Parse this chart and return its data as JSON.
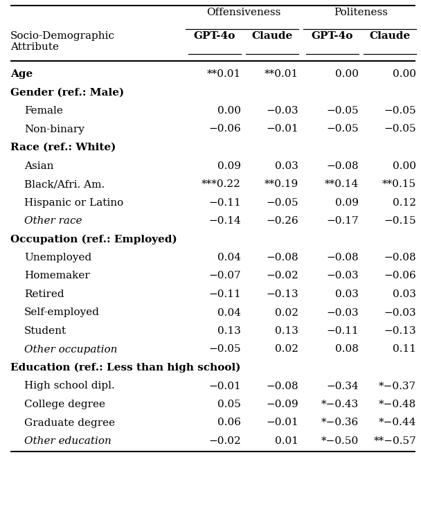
{
  "title_offensiveness": "Offensiveness",
  "title_politeness": "Politeness",
  "col_header_left_line1": "Socio-Demographic",
  "col_header_left_line2": "Attribute",
  "col_headers": [
    "GPT-4o",
    "Claude",
    "GPT-4o",
    "Claude"
  ],
  "rows": [
    {
      "label": "Age",
      "bold": true,
      "italic": false,
      "indent": false,
      "vals": [
        "**0.01",
        "**0.01",
        "0.00",
        "0.00"
      ],
      "underline_each_col": true
    },
    {
      "label": "Gender (ref.: Male)",
      "bold": true,
      "italic": false,
      "indent": false,
      "vals": [
        "",
        "",
        "",
        ""
      ],
      "underline_each_col": false
    },
    {
      "label": "Female",
      "bold": false,
      "italic": false,
      "indent": true,
      "vals": [
        "0.00",
        "−0.03",
        "−0.05",
        "−0.05"
      ],
      "underline_each_col": false
    },
    {
      "label": "Non-binary",
      "bold": false,
      "italic": false,
      "indent": true,
      "vals": [
        "−0.06",
        "−0.01",
        "−0.05",
        "−0.05"
      ],
      "underline_each_col": false
    },
    {
      "label": "Race (ref.: White)",
      "bold": true,
      "italic": false,
      "indent": false,
      "vals": [
        "",
        "",
        "",
        ""
      ],
      "underline_each_col": false
    },
    {
      "label": "Asian",
      "bold": false,
      "italic": false,
      "indent": true,
      "vals": [
        "0.09",
        "0.03",
        "−0.08",
        "0.00"
      ],
      "underline_each_col": false
    },
    {
      "label": "Black/Afri. Am.",
      "bold": false,
      "italic": false,
      "indent": true,
      "vals": [
        "***0.22",
        "**0.19",
        "**0.14",
        "**0.15"
      ],
      "underline_each_col": false
    },
    {
      "label": "Hispanic or Latino",
      "bold": false,
      "italic": false,
      "indent": true,
      "vals": [
        "−0.11",
        "−0.05",
        "0.09",
        "0.12"
      ],
      "underline_each_col": false
    },
    {
      "label": "Other race",
      "bold": false,
      "italic": true,
      "indent": true,
      "vals": [
        "−0.14",
        "−0.26",
        "−0.17",
        "−0.15"
      ],
      "underline_each_col": false
    },
    {
      "label": "Occupation (ref.: Employed)",
      "bold": true,
      "italic": false,
      "indent": false,
      "vals": [
        "",
        "",
        "",
        ""
      ],
      "underline_each_col": false
    },
    {
      "label": "Unemployed",
      "bold": false,
      "italic": false,
      "indent": true,
      "vals": [
        "0.04",
        "−0.08",
        "−0.08",
        "−0.08"
      ],
      "underline_each_col": false
    },
    {
      "label": "Homemaker",
      "bold": false,
      "italic": false,
      "indent": true,
      "vals": [
        "−0.07",
        "−0.02",
        "−0.03",
        "−0.06"
      ],
      "underline_each_col": false
    },
    {
      "label": "Retired",
      "bold": false,
      "italic": false,
      "indent": true,
      "vals": [
        "−0.11",
        "−0.13",
        "0.03",
        "0.03"
      ],
      "underline_each_col": false
    },
    {
      "label": "Self-employed",
      "bold": false,
      "italic": false,
      "indent": true,
      "vals": [
        "0.04",
        "0.02",
        "−0.03",
        "−0.03"
      ],
      "underline_each_col": false
    },
    {
      "label": "Student",
      "bold": false,
      "italic": false,
      "indent": true,
      "vals": [
        "0.13",
        "0.13",
        "−0.11",
        "−0.13"
      ],
      "underline_each_col": false
    },
    {
      "label": "Other occupation",
      "bold": false,
      "italic": true,
      "indent": true,
      "vals": [
        "−0.05",
        "0.02",
        "0.08",
        "0.11"
      ],
      "underline_each_col": false
    },
    {
      "label": "Education (ref.: Less than high school)",
      "bold": true,
      "italic": false,
      "indent": false,
      "vals": [
        "",
        "",
        "",
        ""
      ],
      "underline_each_col": false
    },
    {
      "label": "High school dipl.",
      "bold": false,
      "italic": false,
      "indent": true,
      "vals": [
        "−0.01",
        "−0.08",
        "−0.34",
        "*−0.37"
      ],
      "underline_each_col": false
    },
    {
      "label": "College degree",
      "bold": false,
      "italic": false,
      "indent": true,
      "vals": [
        "0.05",
        "−0.09",
        "*−0.43",
        "*−0.48"
      ],
      "underline_each_col": false
    },
    {
      "label": "Graduate degree",
      "bold": false,
      "italic": false,
      "indent": true,
      "vals": [
        "0.06",
        "−0.01",
        "*−0.36",
        "*−0.44"
      ],
      "underline_each_col": false
    },
    {
      "label": "Other education",
      "bold": false,
      "italic": true,
      "indent": true,
      "vals": [
        "−0.02",
        "0.01",
        "*−0.50",
        "**−0.57"
      ],
      "underline_each_col": false
    }
  ],
  "figsize": [
    6.08,
    7.48
  ],
  "dpi": 100,
  "fontsize": 11.0,
  "font_family": "DejaVu Serif"
}
